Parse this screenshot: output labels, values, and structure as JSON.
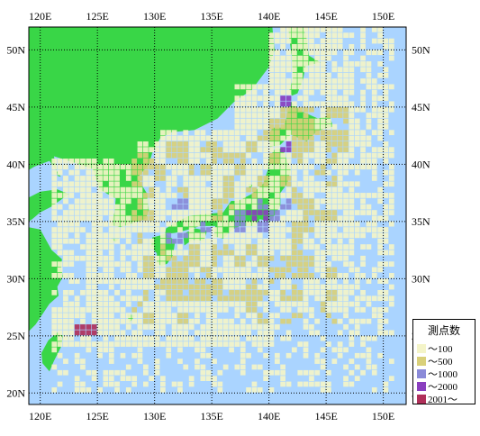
{
  "map": {
    "lon_labels": [
      "120E",
      "125E",
      "130E",
      "135E",
      "140E",
      "145E",
      "150E"
    ],
    "lat_labels": [
      "50N",
      "45N",
      "40N",
      "35N",
      "30N",
      "25N",
      "20N"
    ],
    "lon_range": [
      119,
      152
    ],
    "lat_range": [
      19,
      52
    ],
    "colors": {
      "sea": "#aad4ff",
      "land": "#39d647",
      "grid_line": "#000000",
      "cell_100": "#f4f4c8",
      "cell_500": "#d9d07a",
      "cell_1000": "#8a8ad8",
      "cell_2000": "#8a3fbf",
      "cell_2001": "#b0305a"
    }
  },
  "legend": {
    "title": "測点数",
    "items": [
      {
        "label": "～100",
        "color": "#f4f4c8"
      },
      {
        "label": "～500",
        "color": "#d9d07a"
      },
      {
        "label": "～1000",
        "color": "#8a8ad8"
      },
      {
        "label": "～2000",
        "color": "#8a3fbf"
      },
      {
        "label": "2001～",
        "color": "#b0305a"
      }
    ]
  }
}
